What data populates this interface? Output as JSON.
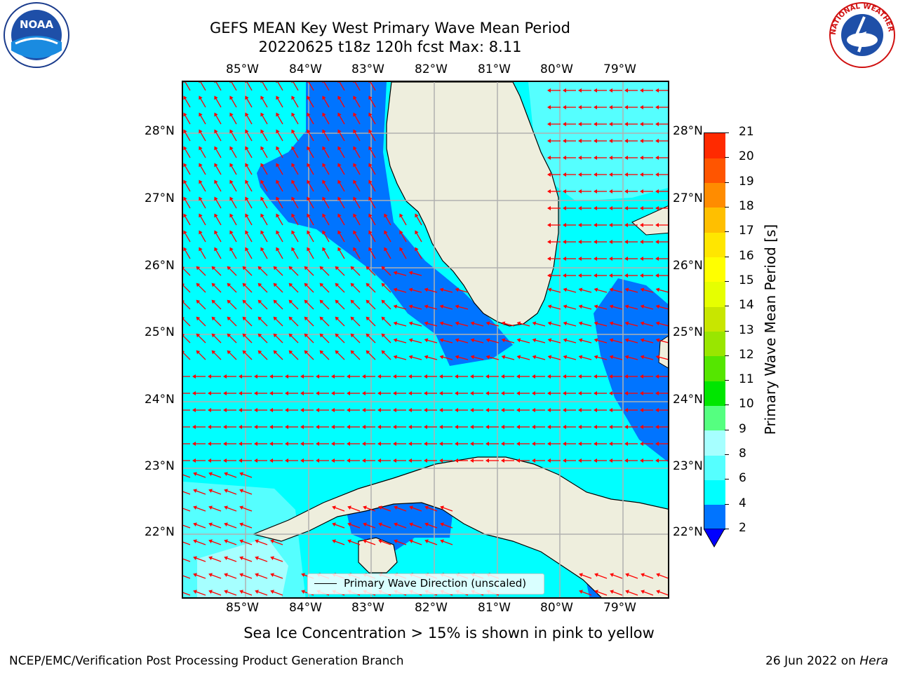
{
  "title_line1": "GEFS MEAN Key West Primary Wave Mean Period",
  "title_line2": "20220625 t18z 120h fcst   Max: 8.11",
  "lon_ticks": [
    "85°W",
    "84°W",
    "83°W",
    "82°W",
    "81°W",
    "80°W",
    "79°W"
  ],
  "lat_ticks": [
    "28°N",
    "27°N",
    "26°N",
    "25°N",
    "24°N",
    "23°N",
    "22°N"
  ],
  "colorbar": {
    "label": "Primary Wave Mean Period [s]",
    "tick_labels": [
      "2",
      "4",
      "6",
      "8",
      "9",
      "10",
      "11",
      "12",
      "13",
      "14",
      "15",
      "16",
      "17",
      "18",
      "19",
      "20",
      "21"
    ],
    "colors": [
      "#0074ff",
      "#00ffff",
      "#55ffff",
      "#a6ffff",
      "#55ff80",
      "#00e600",
      "#55e600",
      "#99e600",
      "#c8e600",
      "#e6ff00",
      "#ffff00",
      "#ffe600",
      "#ffbf00",
      "#ff8c00",
      "#ff5500",
      "#ff2a00",
      "#ff0000"
    ],
    "under_color": "#0000ff"
  },
  "map": {
    "water_colors": {
      "deep": "#0074ff",
      "mid": "#00ffff",
      "light": "#55ffff"
    },
    "land_color": "#eeeedd",
    "arrow_color": "#ff0000"
  },
  "legend_label": "Primary Wave Direction (unscaled)",
  "subtitle": "Sea Ice Concentration > 15% is shown in pink to yellow",
  "footer_left": "NCEP/EMC/Verification Post Processing Product Generation Branch",
  "footer_date": "26 Jun 2022 on ",
  "footer_host": "Hera",
  "logos": {
    "left_text": "NOAA",
    "right_text": "NATIONAL WEATHER SERVICE"
  }
}
